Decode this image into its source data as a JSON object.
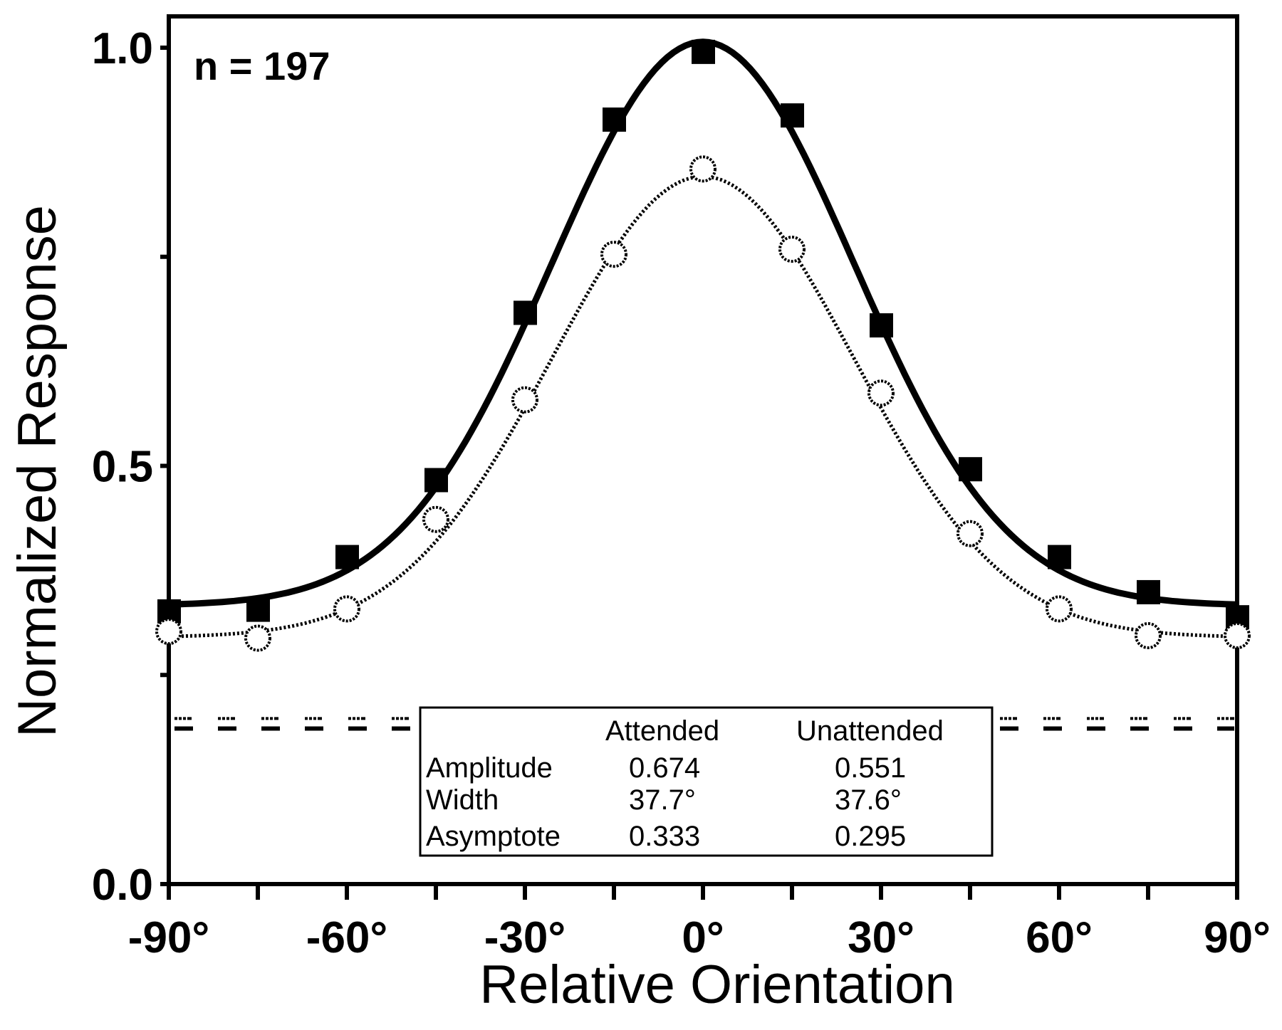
{
  "chart_data": {
    "type": "line",
    "title": "",
    "annotation": "n = 197",
    "xlabel": "Relative Orientation",
    "ylabel": "Normalized Response",
    "xlim": [
      -90,
      90
    ],
    "ylim": [
      0.0,
      1.0
    ],
    "grid": false,
    "x_ticks": [
      -90,
      -75,
      -60,
      -45,
      -30,
      -15,
      0,
      15,
      30,
      45,
      60,
      75,
      90
    ],
    "x_tick_labels": [
      {
        "value": -90,
        "label": "-90°"
      },
      {
        "value": -60,
        "label": "-60°"
      },
      {
        "value": -30,
        "label": "-30°"
      },
      {
        "value": 0,
        "label": "0°"
      },
      {
        "value": 30,
        "label": "30°"
      },
      {
        "value": 60,
        "label": "60°"
      },
      {
        "value": 90,
        "label": "90°"
      }
    ],
    "y_ticks": [
      0.0,
      0.25,
      0.5,
      0.75,
      1.0
    ],
    "y_tick_labels": [
      {
        "value": 0.0,
        "label": "0.0"
      },
      {
        "value": 0.5,
        "label": "0.5"
      },
      {
        "value": 1.0,
        "label": "1.0"
      }
    ],
    "x": [
      -90,
      -75,
      -60,
      -45,
      -30,
      -15,
      0,
      15,
      30,
      45,
      60,
      75,
      90
    ],
    "series": [
      {
        "name": "Attended",
        "marker": "filled-square",
        "line": "solid",
        "values": [
          0.326,
          0.328,
          0.391,
          0.483,
          0.683,
          0.914,
          0.995,
          0.919,
          0.668,
          0.496,
          0.391,
          0.349,
          0.319
        ],
        "fit": {
          "amplitude": 0.674,
          "width_deg": 37.7,
          "asymptote": 0.333
        },
        "baseline": 0.186
      },
      {
        "name": "Unattended",
        "marker": "open-circle",
        "line": "dotted",
        "values": [
          0.302,
          0.294,
          0.329,
          0.436,
          0.579,
          0.753,
          0.855,
          0.759,
          0.587,
          0.419,
          0.329,
          0.297,
          0.297
        ],
        "fit": {
          "amplitude": 0.551,
          "width_deg": 37.6,
          "asymptote": 0.295
        },
        "baseline": 0.198
      }
    ],
    "legend": {
      "placement": "bottom-center",
      "header": [
        "",
        "Attended",
        "Unattended"
      ],
      "rows": [
        {
          "label": "Amplitude",
          "attended": "0.674",
          "unattended": "0.551"
        },
        {
          "label": "Width",
          "attended": "37.7°",
          "unattended": "37.6°"
        },
        {
          "label": "Asymptote",
          "attended": "0.333",
          "unattended": "0.295"
        }
      ]
    }
  }
}
